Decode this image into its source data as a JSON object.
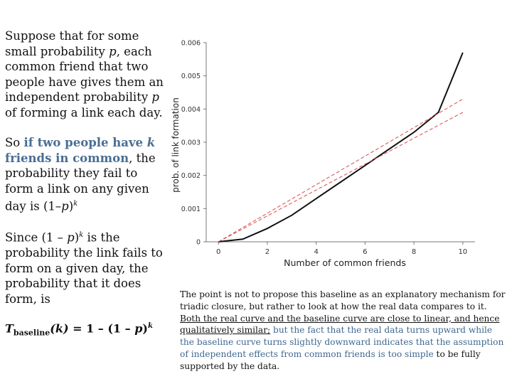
{
  "left": {
    "p1_pre": "Suppose that for some small probability ",
    "p1_var": "p",
    "p1_post": ", each common friend that two people have gives them an independent probability ",
    "p1_var2": "p",
    "p1_end": " of forming a link each day.",
    "p2_pre": "So ",
    "p2_hl": "if two people have ",
    "p2_k": "k",
    "p2_hl2": " friends in common",
    "p2_post": ", the probability they fail to form a link on any given day is (1–",
    "p2_p": "p",
    "p2_close": ")",
    "p2_exp": "k",
    "p3_pre": "Since (1 – ",
    "p3_p": "p",
    "p3_close": ")",
    "p3_exp": "k",
    "p3_post": " is the probability the link fails to form on a given day, the probability that it does form, is",
    "f_T": "T",
    "f_sub": "baseline",
    "f_arg": "(k)",
    "f_eq": " = 1 – (1 – ",
    "f_p": "p",
    "f_close": ")",
    "f_exp": "k"
  },
  "note": {
    "t1": "The point is not to propose this baseline as an explanatory mechanism for triadic closure, but rather to look at how the real data compares to it. ",
    "t2": "Both the real curve and the baseline curve are close to linear, and hence qualitatively similar;",
    "t3": " but the fact that the real data turns upward while the baseline curve turns slightly downward indicates that the assumption of independent effects from common friends is too simple",
    "t4": " to be fully supported by the data."
  },
  "chart_data": {
    "type": "line",
    "xlabel": "Number of common friends",
    "ylabel": "prob. of link formation",
    "xlim": [
      -0.5,
      10.5
    ],
    "ylim": [
      0,
      0.006
    ],
    "xticks": [
      "0",
      "2",
      "4",
      "6",
      "8",
      "10"
    ],
    "yticks": [
      "0",
      "0.001",
      "0.002",
      "0.003",
      "0.004",
      "0.005",
      "0.006"
    ],
    "series": [
      {
        "style": "solid",
        "color": "#111111",
        "x": [
          0,
          1,
          2,
          3,
          4,
          5,
          6,
          7,
          8,
          9,
          10
        ],
        "y": [
          0.0,
          8e-05,
          0.0004,
          0.0008,
          0.0013,
          0.0018,
          0.0023,
          0.0028,
          0.0033,
          0.0039,
          0.0057
        ]
      },
      {
        "style": "dashed",
        "color": "#d94a4a",
        "x": [
          0,
          10
        ],
        "y": [
          0.0,
          0.0039
        ]
      },
      {
        "style": "dashed",
        "color": "#d94a4a",
        "x": [
          0,
          10
        ],
        "y": [
          0.0,
          0.0043
        ]
      }
    ]
  }
}
